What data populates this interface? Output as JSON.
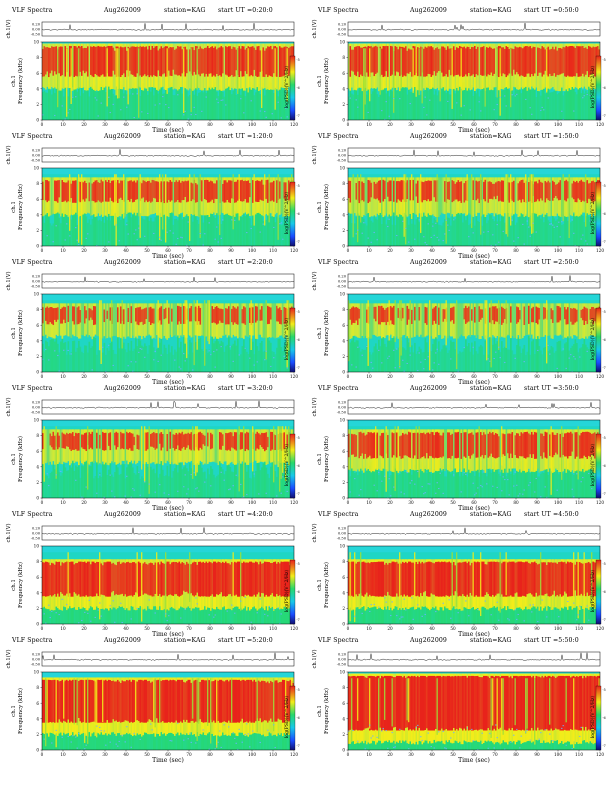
{
  "page": {
    "common": {
      "title": "VLF Spectra",
      "date": "Aug262009",
      "station": "station=KAG",
      "xlabel": "Time (sec)",
      "ylabel_freq": "Frequency (kHz)",
      "ylabel_ch": "ch.1",
      "ylabel_volt": "ch.1(V)",
      "cbar_label": "log(PSD)(V^2/Hz)",
      "x_ticks": [
        "0",
        "10",
        "20",
        "30",
        "40",
        "50",
        "60",
        "70",
        "80",
        "90",
        "100",
        "110",
        "120"
      ],
      "freq_ticks": [
        "0",
        "2",
        "4",
        "6",
        "8",
        "10"
      ],
      "volt_ticks": [
        "0.20",
        "0.00",
        "-0.50"
      ],
      "cbar_ticks": [
        "-5",
        "-6",
        "-7"
      ]
    },
    "colors": {
      "background": "#1fd6c4",
      "low": "#14bfe0",
      "mid": "#27d86b",
      "midhigh": "#9de038",
      "high": "#f2ec1a",
      "peak": "#e8231b",
      "stripe": "#6ab0ff",
      "band_top": "#25d6d8"
    }
  },
  "chart_data": [
    {
      "type": "heatmap",
      "start_ut": "start UT =0:20:0",
      "xlim": [
        0,
        120
      ],
      "ylim": [
        0,
        10
      ],
      "intensity": 0.62,
      "red_band_khz": [
        5.5,
        9.5
      ]
    },
    {
      "type": "heatmap",
      "start_ut": "start UT =0:50:0",
      "xlim": [
        0,
        120
      ],
      "ylim": [
        0,
        10
      ],
      "intensity": 0.62,
      "red_band_khz": [
        5.5,
        9.5
      ]
    },
    {
      "type": "heatmap",
      "start_ut": "start UT =1:20:0",
      "xlim": [
        0,
        120
      ],
      "ylim": [
        0,
        10
      ],
      "intensity": 0.52,
      "red_band_khz": [
        5.5,
        8.5
      ]
    },
    {
      "type": "heatmap",
      "start_ut": "start UT =1:50:0",
      "xlim": [
        0,
        120
      ],
      "ylim": [
        0,
        10
      ],
      "intensity": 0.5,
      "red_band_khz": [
        5.5,
        8.5
      ]
    },
    {
      "type": "heatmap",
      "start_ut": "start UT =2:20:0",
      "xlim": [
        0,
        120
      ],
      "ylim": [
        0,
        10
      ],
      "intensity": 0.4,
      "red_band_khz": [
        6.0,
        8.5
      ]
    },
    {
      "type": "heatmap",
      "start_ut": "start UT =2:50:0",
      "xlim": [
        0,
        120
      ],
      "ylim": [
        0,
        10
      ],
      "intensity": 0.4,
      "red_band_khz": [
        6.0,
        8.5
      ]
    },
    {
      "type": "heatmap",
      "start_ut": "start UT =3:20:0",
      "xlim": [
        0,
        120
      ],
      "ylim": [
        0,
        10
      ],
      "intensity": 0.45,
      "red_band_khz": [
        6.0,
        8.5
      ]
    },
    {
      "type": "heatmap",
      "start_ut": "start UT =3:50:0",
      "xlim": [
        0,
        120
      ],
      "ylim": [
        0,
        10
      ],
      "intensity": 0.55,
      "red_band_khz": [
        5.0,
        8.5
      ]
    },
    {
      "type": "heatmap",
      "start_ut": "start UT =4:20:0",
      "xlim": [
        0,
        120
      ],
      "ylim": [
        0,
        10
      ],
      "intensity": 0.78,
      "red_band_khz": [
        3.5,
        8.0
      ]
    },
    {
      "type": "heatmap",
      "start_ut": "start UT =4:50:0",
      "xlim": [
        0,
        120
      ],
      "ylim": [
        0,
        10
      ],
      "intensity": 0.78,
      "red_band_khz": [
        3.5,
        8.0
      ]
    },
    {
      "type": "heatmap",
      "start_ut": "start UT =5:20:0",
      "xlim": [
        0,
        120
      ],
      "ylim": [
        0,
        10
      ],
      "intensity": 0.88,
      "red_band_khz": [
        3.5,
        9.0
      ]
    },
    {
      "type": "heatmap",
      "start_ut": "start UT =5:50:0",
      "xlim": [
        0,
        120
      ],
      "ylim": [
        0,
        10
      ],
      "intensity": 0.95,
      "red_band_khz": [
        2.5,
        9.5
      ]
    }
  ]
}
